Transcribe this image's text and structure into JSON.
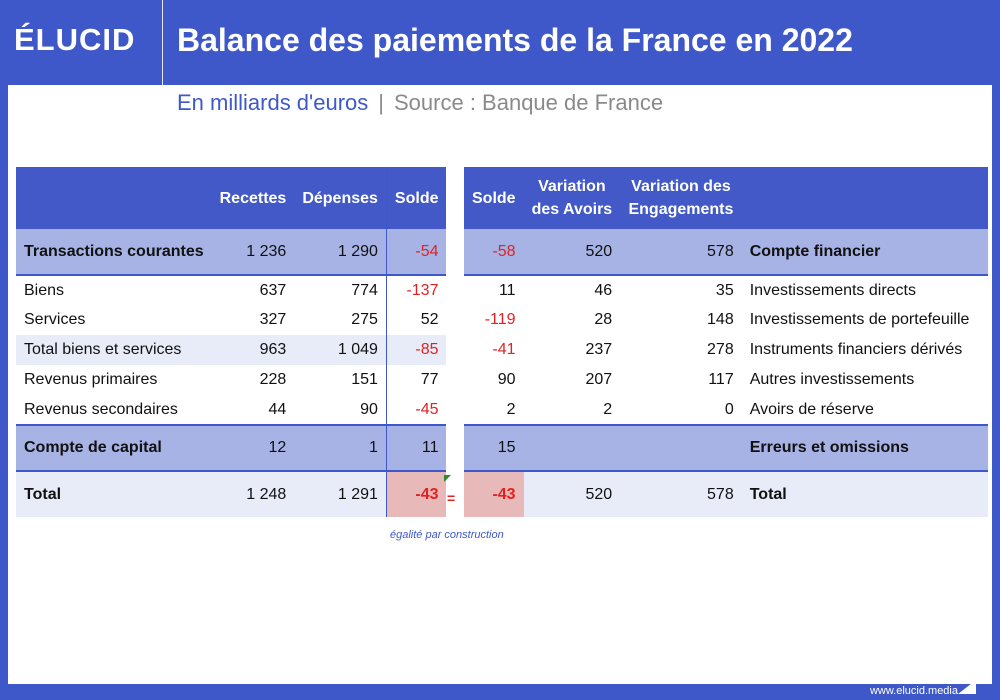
{
  "header": {
    "logo": "ÉLUCID",
    "title": "Balance des paiements de la France en 2022"
  },
  "subtitle": {
    "unit": "En milliards d'euros",
    "separator": "|",
    "source": "Source : Banque de France"
  },
  "left_table": {
    "headers": [
      "",
      "Recettes",
      "Dépenses",
      "Solde"
    ],
    "rows": [
      {
        "label": "Transactions courantes",
        "recettes": "1 236",
        "depenses": "1 290",
        "solde": "-54"
      },
      {
        "label": "Biens",
        "recettes": "637",
        "depenses": "774",
        "solde": "-137"
      },
      {
        "label": "Services",
        "recettes": "327",
        "depenses": "275",
        "solde": "52"
      },
      {
        "label": "Total biens et services",
        "recettes": "963",
        "depenses": "1 049",
        "solde": "-85"
      },
      {
        "label": "Revenus primaires",
        "recettes": "228",
        "depenses": "151",
        "solde": "77"
      },
      {
        "label": "Revenus secondaires",
        "recettes": "44",
        "depenses": "90",
        "solde": "-45"
      },
      {
        "label": "Compte de capital",
        "recettes": "12",
        "depenses": "1",
        "solde": "11"
      },
      {
        "label": "Total",
        "recettes": "1 248",
        "depenses": "1 291",
        "solde": "-43"
      }
    ]
  },
  "right_table": {
    "headers": [
      "Solde",
      "Variation des Avoirs",
      "Variation des Engagements",
      ""
    ],
    "headers_line1": [
      "Solde",
      "Variation",
      "Variation des",
      ""
    ],
    "headers_line2": [
      "",
      "des Avoirs",
      "Engagements",
      ""
    ],
    "rows": [
      {
        "solde": "-58",
        "avoirs": "520",
        "engagements": "578",
        "label": "Compte financier"
      },
      {
        "solde": "11",
        "avoirs": "46",
        "engagements": "35",
        "label": "Investissements directs"
      },
      {
        "solde": "-119",
        "avoirs": "28",
        "engagements": "148",
        "label": "Investissements de portefeuille"
      },
      {
        "solde": "-41",
        "avoirs": "237",
        "engagements": "278",
        "label": "Instruments financiers dérivés"
      },
      {
        "solde": "90",
        "avoirs": "207",
        "engagements": "117",
        "label": "Autres investissements"
      },
      {
        "solde": "2",
        "avoirs": "2",
        "engagements": "0",
        "label": "Avoirs de réserve"
      },
      {
        "solde": "15",
        "avoirs": "",
        "engagements": "",
        "label": "Erreurs et omissions"
      },
      {
        "solde": "-43",
        "avoirs": "520",
        "engagements": "578",
        "label": "Total"
      }
    ]
  },
  "equal_sign": "=",
  "note": "égalité par construction",
  "footer": {
    "url": "www.elucid.media"
  },
  "colors": {
    "brand": "#3f58c9",
    "band": "#a7b2e5",
    "light_band": "#e8ebf8",
    "negative": "#e02222",
    "highlight": "#e8b9b9"
  }
}
